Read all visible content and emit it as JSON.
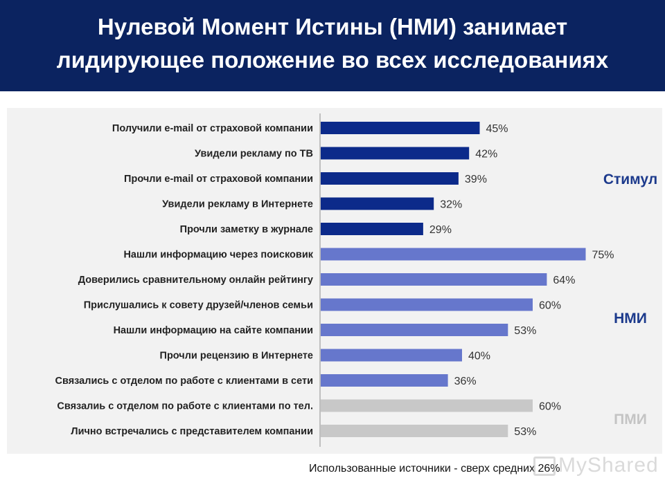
{
  "header": {
    "line1": "Нулевой Момент Истины (НМИ) занимает",
    "line2": "лидирующее положение во всех исследованиях"
  },
  "footnote": "Использованные источники - сверх средних 26%",
  "watermark": "MyShared",
  "colors": {
    "header_bg": "#0b2360",
    "stimulus": "#0c2a8a",
    "zmot": "#6677cc",
    "fmot": "#c8c8c8",
    "group_label_dark": "#1c3a8c",
    "group_label_light": "#c4c4c4"
  },
  "chart_data": {
    "type": "bar",
    "orientation": "horizontal",
    "xlim": [
      0,
      75
    ],
    "categories": [
      "Получили e-mail от страховой компании",
      "Увидели рекламу по ТВ",
      "Прочли e-mail от страховой компании",
      "Увидели рекламу в Интернете",
      "Прочли заметку в журнале",
      "Нашли информацию через поисковик",
      "Доверились сравнительному онлайн рейтингу",
      "Прислушались к совету друзей/членов семьи",
      "Нашли информацию на сайте компании",
      "Прочли рецензию в Интернете",
      "Связались с отделом по работе с клиентами в сети",
      "Связалиь с отделом по работе с клиентами по тел.",
      "Лично встречались с представителем компании"
    ],
    "values": [
      45,
      42,
      39,
      32,
      29,
      75,
      64,
      60,
      53,
      40,
      36,
      60,
      53
    ],
    "value_labels": [
      "45%",
      "42%",
      "39%",
      "32%",
      "29%",
      "75%",
      "64%",
      "60%",
      "53%",
      "40%",
      "36%",
      "60%",
      "53%"
    ],
    "groups": [
      {
        "label": "Стимул",
        "rows": [
          0,
          4
        ],
        "color": "#0c2a8a",
        "label_color": "#1c3a8c"
      },
      {
        "label": "НМИ",
        "rows": [
          5,
          10
        ],
        "color": "#6677cc",
        "label_color": "#1c3a8c"
      },
      {
        "label": "ПМИ",
        "rows": [
          11,
          12
        ],
        "color": "#c8c8c8",
        "label_color": "#c4c4c4"
      }
    ]
  }
}
